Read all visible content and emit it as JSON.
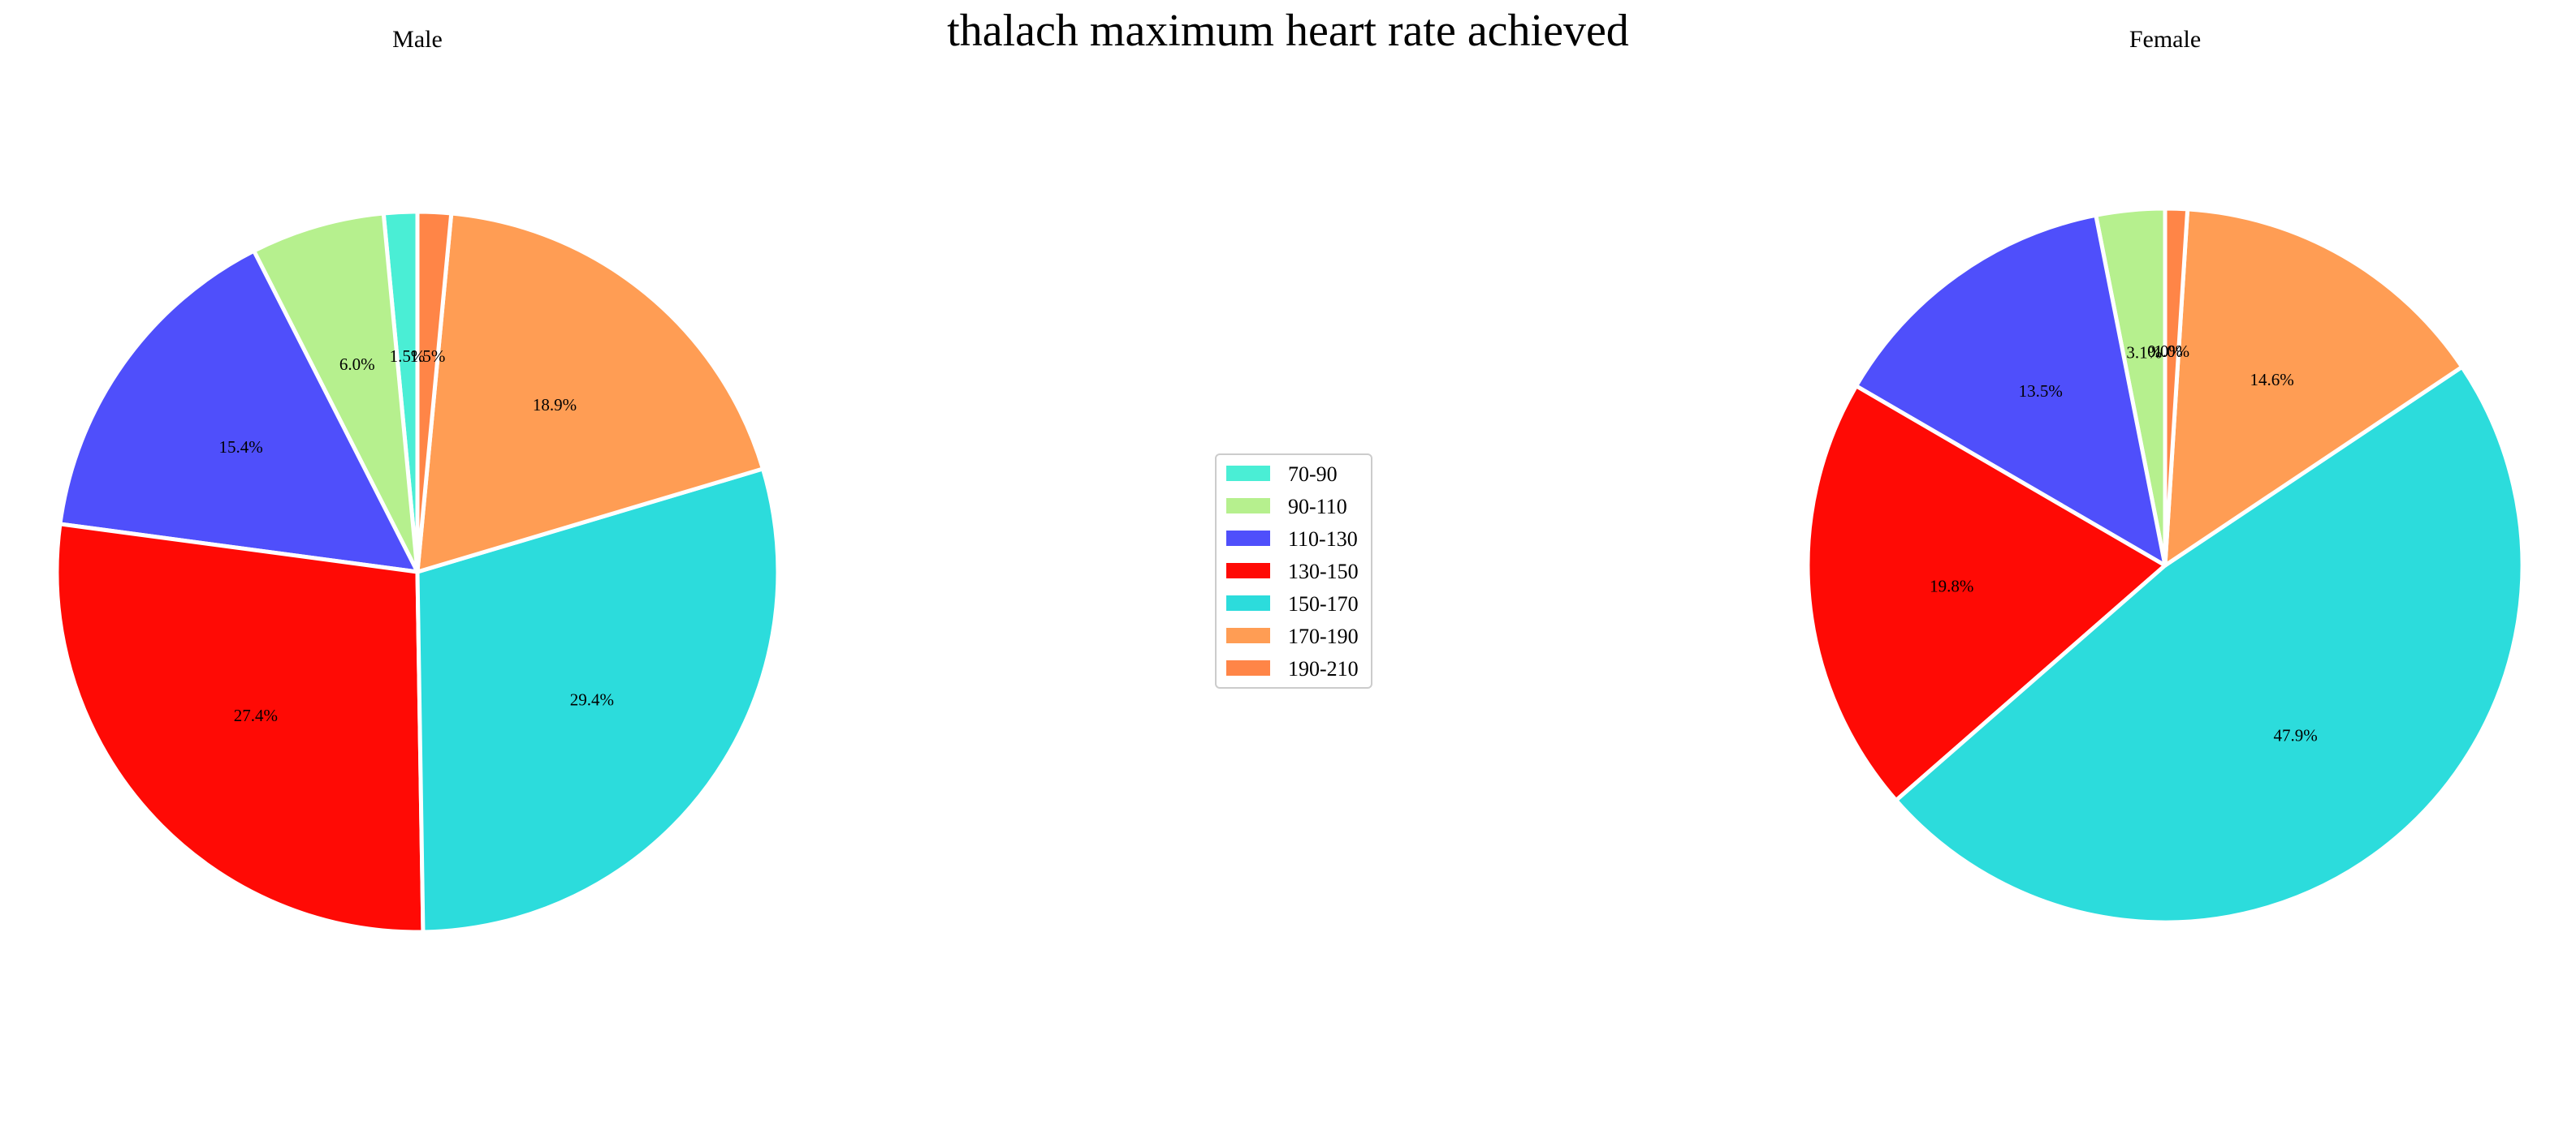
{
  "chart_data": {
    "type": "pie",
    "title": "thalach maximum heart rate achieved",
    "categories": [
      "70-90",
      "90-110",
      "110-130",
      "130-150",
      "150-170",
      "170-190",
      "190-210"
    ],
    "colors": [
      "#4aeed5",
      "#b6f08e",
      "#4f4ffb",
      "#ff0a05",
      "#2cdcdc",
      "#ff9d54",
      "#ff8547"
    ],
    "legend_position": "center",
    "pies": [
      {
        "title": "Male",
        "values": [
          1.5,
          6.0,
          15.4,
          27.4,
          29.4,
          18.9,
          1.5
        ],
        "labels": [
          "1.5%",
          "6.0%",
          "15.4%",
          "27.4%",
          "29.4%",
          "18.9%",
          "1.5%"
        ]
      },
      {
        "title": "Female",
        "values": [
          0.0,
          3.1,
          13.5,
          19.8,
          47.9,
          14.6,
          1.0
        ],
        "labels": [
          "0.0%",
          "3.1%",
          "13.5%",
          "19.8%",
          "47.9%",
          "14.6%",
          "1.0%"
        ]
      }
    ]
  }
}
